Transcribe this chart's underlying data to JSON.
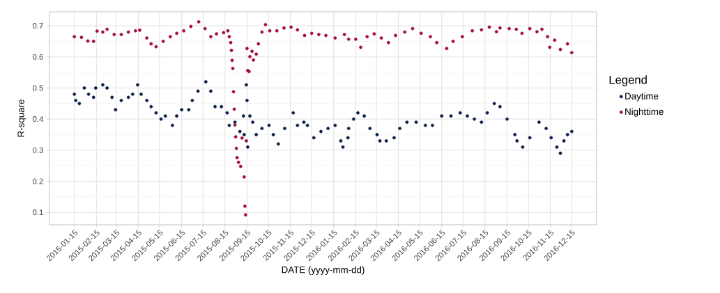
{
  "chart_data": {
    "type": "scatter",
    "xlabel": "DATE (yyyy-mm-dd)",
    "ylabel": "R-square",
    "legend_title": "Legend",
    "legend": "right",
    "grid": true,
    "marker": "circle",
    "xlim": [
      "2014-12-11",
      "2017-01-19"
    ],
    "ylim": [
      0.06,
      0.745
    ],
    "xticks": [
      "2015-01-15",
      "2015-02-15",
      "2015-03-15",
      "2015-04-15",
      "2015-05-15",
      "2015-06-15",
      "2015-07-15",
      "2015-08-15",
      "2015-09-15",
      "2015-10-15",
      "2015-11-15",
      "2015-12-15",
      "2016-01-15",
      "2016-02-15",
      "2016-03-15",
      "2016-04-15",
      "2016-05-15",
      "2016-06-15",
      "2016-07-15",
      "2016-08-15",
      "2016-09-15",
      "2016-10-15",
      "2016-11-15",
      "2016-12-15"
    ],
    "yticks": [
      0.1,
      0.2,
      0.3,
      0.4,
      0.5,
      0.6,
      0.7
    ],
    "series": [
      {
        "name": "Daytime",
        "color": "#0b2147",
        "x": [
          "2015-01-15",
          "2015-01-17",
          "2015-01-22",
          "2015-01-29",
          "2015-02-04",
          "2015-02-11",
          "2015-02-14",
          "2015-02-24",
          "2015-03-02",
          "2015-03-09",
          "2015-03-14",
          "2015-03-22",
          "2015-04-01",
          "2015-04-07",
          "2015-04-14",
          "2015-04-19",
          "2015-04-27",
          "2015-05-03",
          "2015-05-10",
          "2015-05-17",
          "2015-05-23",
          "2015-06-02",
          "2015-06-08",
          "2015-06-15",
          "2015-06-25",
          "2015-06-30",
          "2015-07-08",
          "2015-07-19",
          "2015-07-26",
          "2015-08-01",
          "2015-08-10",
          "2015-08-18",
          "2015-08-21",
          "2015-08-29",
          "2015-09-05",
          "2015-09-10",
          "2015-09-11",
          "2015-09-14",
          "2015-09-15",
          "2015-09-16",
          "2015-09-19",
          "2015-09-23",
          "2015-09-28",
          "2015-10-06",
          "2015-10-16",
          "2015-10-22",
          "2015-10-29",
          "2015-11-07",
          "2015-11-19",
          "2015-11-25",
          "2015-12-04",
          "2015-12-09",
          "2015-12-18",
          "2015-12-28",
          "2016-01-07",
          "2016-01-17",
          "2016-01-25",
          "2016-01-28",
          "2016-02-04",
          "2016-02-05",
          "2016-02-12",
          "2016-02-18",
          "2016-02-27",
          "2016-03-06",
          "2016-03-16",
          "2016-03-20",
          "2016-03-29",
          "2016-04-09",
          "2016-04-17",
          "2016-04-27",
          "2016-05-10",
          "2016-05-23",
          "2016-06-02",
          "2016-06-15",
          "2016-06-28",
          "2016-07-11",
          "2016-07-21",
          "2016-07-31",
          "2016-08-10",
          "2016-08-18",
          "2016-08-28",
          "2016-09-05",
          "2016-09-15",
          "2016-09-26",
          "2016-09-29",
          "2016-10-07",
          "2016-10-17",
          "2016-10-30",
          "2016-11-09",
          "2016-11-16",
          "2016-11-24",
          "2016-11-29",
          "2016-12-04",
          "2016-12-09",
          "2016-12-15"
        ],
        "values": [
          0.48,
          0.46,
          0.45,
          0.5,
          0.48,
          0.47,
          0.5,
          0.51,
          0.5,
          0.47,
          0.43,
          0.46,
          0.47,
          0.48,
          0.51,
          0.48,
          0.46,
          0.44,
          0.42,
          0.4,
          0.41,
          0.38,
          0.41,
          0.43,
          0.43,
          0.46,
          0.49,
          0.52,
          0.49,
          0.44,
          0.44,
          0.42,
          0.38,
          0.39,
          0.36,
          0.41,
          0.35,
          0.51,
          0.46,
          0.31,
          0.41,
          0.39,
          0.35,
          0.37,
          0.38,
          0.35,
          0.32,
          0.37,
          0.42,
          0.38,
          0.39,
          0.38,
          0.34,
          0.36,
          0.37,
          0.38,
          0.33,
          0.31,
          0.34,
          0.37,
          0.4,
          0.42,
          0.41,
          0.37,
          0.35,
          0.33,
          0.33,
          0.34,
          0.37,
          0.39,
          0.39,
          0.38,
          0.38,
          0.41,
          0.41,
          0.42,
          0.41,
          0.4,
          0.39,
          0.42,
          0.45,
          0.44,
          0.4,
          0.35,
          0.33,
          0.31,
          0.34,
          0.39,
          0.37,
          0.34,
          0.31,
          0.29,
          0.33,
          0.35,
          0.36
        ]
      },
      {
        "name": "Nighttime",
        "color": "#a50d3f",
        "x": [
          "2015-01-15",
          "2015-01-25",
          "2015-02-03",
          "2015-02-11",
          "2015-02-16",
          "2015-02-24",
          "2015-03-02",
          "2015-03-12",
          "2015-03-22",
          "2015-04-01",
          "2015-04-11",
          "2015-04-17",
          "2015-04-27",
          "2015-05-03",
          "2015-05-10",
          "2015-05-20",
          "2015-05-30",
          "2015-06-08",
          "2015-06-18",
          "2015-06-28",
          "2015-07-09",
          "2015-07-18",
          "2015-07-26",
          "2015-08-03",
          "2015-08-13",
          "2015-08-19",
          "2015-08-21",
          "2015-08-23",
          "2015-08-24",
          "2015-08-25",
          "2015-08-26",
          "2015-08-27",
          "2015-08-28",
          "2015-08-29",
          "2015-08-30",
          "2015-08-31",
          "2015-09-01",
          "2015-09-03",
          "2015-09-06",
          "2015-09-08",
          "2015-09-11",
          "2015-09-12",
          "2015-09-13",
          "2015-09-14",
          "2015-09-15",
          "2015-09-16",
          "2015-09-18",
          "2015-09-19",
          "2015-09-22",
          "2015-09-24",
          "2015-09-28",
          "2015-10-01",
          "2015-10-06",
          "2015-10-11",
          "2015-10-17",
          "2015-10-27",
          "2015-11-06",
          "2015-11-16",
          "2015-11-25",
          "2015-12-05",
          "2015-12-15",
          "2015-12-25",
          "2016-01-04",
          "2016-01-17",
          "2016-01-30",
          "2016-02-05",
          "2016-02-15",
          "2016-02-22",
          "2016-03-02",
          "2016-03-12",
          "2016-03-22",
          "2016-04-01",
          "2016-04-11",
          "2016-04-24",
          "2016-05-05",
          "2016-05-17",
          "2016-05-30",
          "2016-06-08",
          "2016-06-22",
          "2016-07-01",
          "2016-07-14",
          "2016-07-28",
          "2016-08-10",
          "2016-08-21",
          "2016-08-31",
          "2016-09-05",
          "2016-09-18",
          "2016-09-28",
          "2016-10-06",
          "2016-10-17",
          "2016-10-27",
          "2016-11-03",
          "2016-11-11",
          "2016-11-14",
          "2016-11-21",
          "2016-11-29",
          "2016-12-09",
          "2016-12-15"
        ],
        "values": [
          0.665,
          0.663,
          0.651,
          0.65,
          0.683,
          0.68,
          0.689,
          0.672,
          0.672,
          0.68,
          0.684,
          0.686,
          0.661,
          0.642,
          0.633,
          0.65,
          0.665,
          0.676,
          0.684,
          0.698,
          0.713,
          0.691,
          0.665,
          0.674,
          0.678,
          0.684,
          0.665,
          0.646,
          0.621,
          0.589,
          0.563,
          0.488,
          0.432,
          0.381,
          0.343,
          0.306,
          0.276,
          0.261,
          0.248,
          0.339,
          0.214,
          0.12,
          0.092,
          0.33,
          0.627,
          0.556,
          0.553,
          0.601,
          0.618,
          0.59,
          0.609,
          0.642,
          0.68,
          0.704,
          0.684,
          0.684,
          0.693,
          0.696,
          0.687,
          0.669,
          0.676,
          0.672,
          0.669,
          0.661,
          0.672,
          0.657,
          0.657,
          0.631,
          0.665,
          0.674,
          0.661,
          0.646,
          0.669,
          0.68,
          0.691,
          0.676,
          0.665,
          0.646,
          0.627,
          0.65,
          0.665,
          0.684,
          0.687,
          0.696,
          0.681,
          0.693,
          0.691,
          0.689,
          0.676,
          0.691,
          0.681,
          0.689,
          0.665,
          0.631,
          0.654,
          0.624,
          0.642,
          0.614
        ]
      }
    ]
  }
}
